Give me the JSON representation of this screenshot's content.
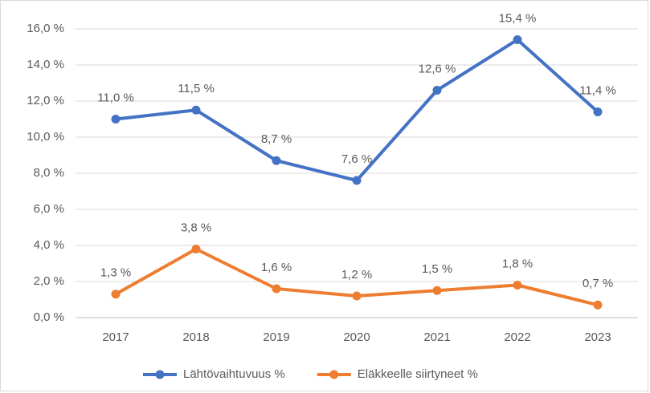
{
  "chart_data": {
    "type": "line",
    "categories": [
      "2017",
      "2018",
      "2019",
      "2020",
      "2021",
      "2022",
      "2023"
    ],
    "series": [
      {
        "name": "Lähtövaihtuvuus %",
        "color": "#4472c4",
        "values": [
          11.0,
          11.5,
          8.7,
          7.6,
          12.6,
          15.4,
          11.4
        ],
        "value_labels": [
          "11,0 %",
          "11,5 %",
          "8,7 %",
          "7,6 %",
          "12,6 %",
          "15,4 %",
          "11,4 %"
        ]
      },
      {
        "name": "Eläkkeelle siirtyneet %",
        "color": "#ed7d31",
        "values": [
          1.3,
          3.8,
          1.6,
          1.2,
          1.5,
          1.8,
          0.7
        ],
        "value_labels": [
          "1,3 %",
          "3,8 %",
          "1,6 %",
          "1,2 %",
          "1,5 %",
          "1,8 %",
          "0,7 %"
        ]
      }
    ],
    "ylim": [
      0,
      16
    ],
    "yticks": [
      {
        "value": 0,
        "label": "0,0 %"
      },
      {
        "value": 2,
        "label": "2,0 %"
      },
      {
        "value": 4,
        "label": "4,0 %"
      },
      {
        "value": 6,
        "label": "6,0 %"
      },
      {
        "value": 8,
        "label": "8,0 %"
      },
      {
        "value": 10,
        "label": "10,0 %"
      },
      {
        "value": 12,
        "label": "12,0 %"
      },
      {
        "value": 14,
        "label": "14,0 %"
      },
      {
        "value": 16,
        "label": "16,0 %"
      }
    ],
    "grid": true,
    "legend": "bottom"
  }
}
